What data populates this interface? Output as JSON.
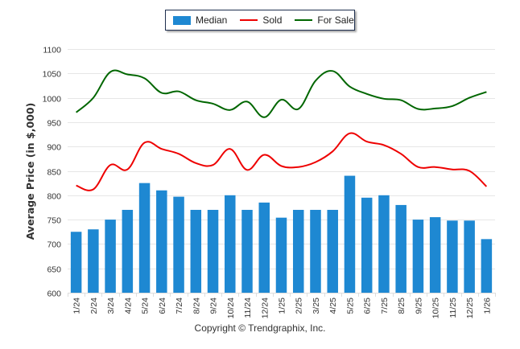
{
  "chart_data": {
    "type": "bar",
    "title": "",
    "xlabel": "",
    "ylabel": "Average Price (in $,000)",
    "ylim": [
      600,
      1100
    ],
    "yticks": [
      600,
      650,
      700,
      750,
      800,
      850,
      900,
      950,
      1000,
      1050,
      1100
    ],
    "grid": true,
    "legend_position": "top-center",
    "categories": [
      "1/24",
      "2/24",
      "3/24",
      "4/24",
      "5/24",
      "6/24",
      "7/24",
      "8/24",
      "9/24",
      "10/24",
      "11/24",
      "12/24",
      "1/25",
      "2/25",
      "3/25",
      "4/25",
      "5/25",
      "6/25",
      "7/25",
      "8/25",
      "9/25",
      "10/25",
      "11/25",
      "12/25",
      "1/26"
    ],
    "series": [
      {
        "name": "Median",
        "kind": "bar",
        "color": "#1e88d2",
        "values": [
          725,
          730,
          750,
          770,
          825,
          810,
          797,
          770,
          770,
          800,
          770,
          785,
          754,
          770,
          770,
          770,
          840,
          795,
          800,
          780,
          750,
          755,
          748,
          748,
          710
        ]
      },
      {
        "name": "Sold",
        "kind": "line",
        "color": "#ee0000",
        "values": [
          820,
          812,
          862,
          853,
          908,
          895,
          885,
          866,
          862,
          895,
          852,
          883,
          860,
          858,
          868,
          890,
          927,
          910,
          903,
          885,
          858,
          858,
          853,
          850,
          818
        ]
      },
      {
        "name": "For Sale",
        "kind": "line",
        "color": "#006600",
        "values": [
          970,
          1000,
          1053,
          1048,
          1040,
          1010,
          1013,
          995,
          988,
          975,
          992,
          960,
          996,
          977,
          1035,
          1055,
          1023,
          1008,
          998,
          995,
          977,
          978,
          983,
          1000,
          1012
        ]
      }
    ]
  },
  "legend": {
    "items": [
      {
        "label": "Median",
        "color": "#1e88d2"
      },
      {
        "label": "Sold",
        "color": "#ee0000"
      },
      {
        "label": "For Sale",
        "color": "#006600"
      }
    ]
  },
  "footer": {
    "copyright": "Copyright © Trendgraphix, Inc."
  }
}
